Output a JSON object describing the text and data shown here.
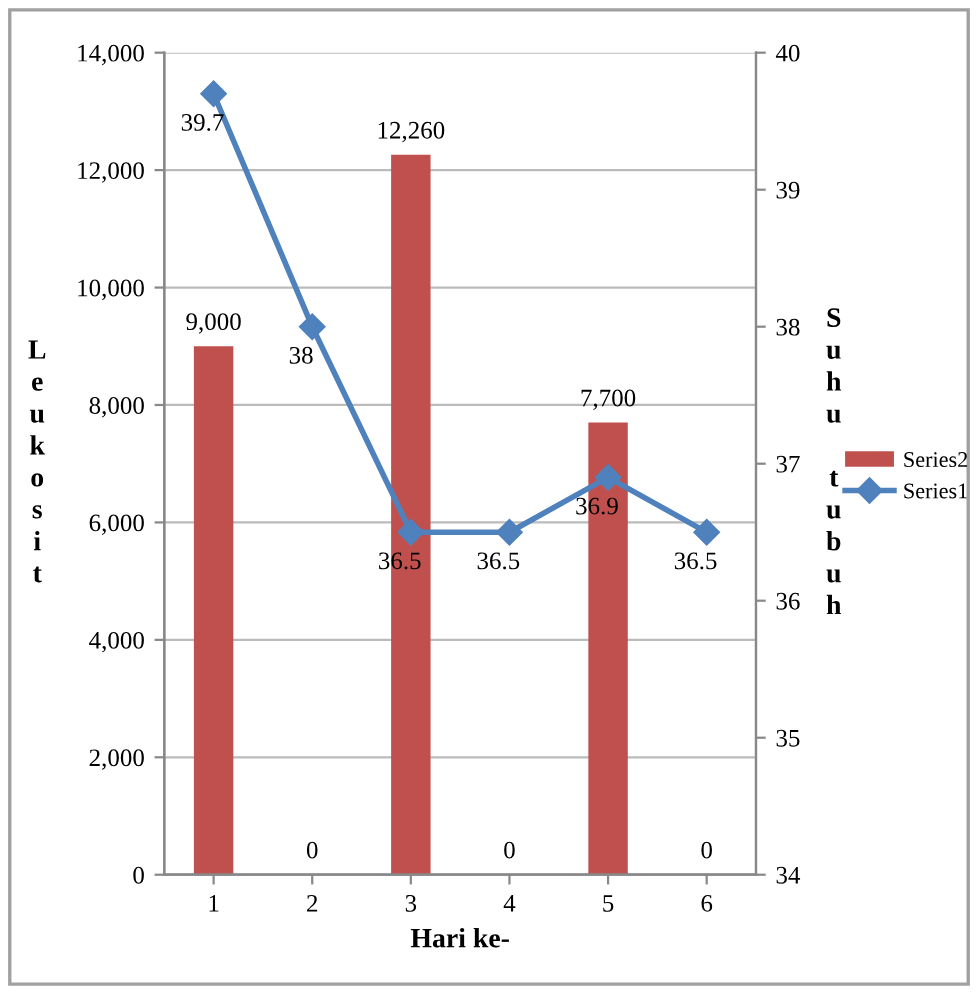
{
  "chart_data": {
    "type": "bar",
    "xlabel": "Hari ke-",
    "ylabel": "Leukosit",
    "y2label": "Suhu tubuh",
    "categories": [
      "1",
      "2",
      "3",
      "4",
      "5",
      "6"
    ],
    "series": [
      {
        "name": "Series2",
        "color": "#c0504d",
        "values": [
          9000,
          0,
          12260,
          0,
          7700,
          0
        ],
        "value_labels": [
          "9,000",
          "0",
          "12,260",
          "0",
          "7,700",
          "0"
        ]
      },
      {
        "name": "Series1",
        "type": "line",
        "axis": "y2",
        "color": "#4f81bd",
        "values": [
          39.7,
          38,
          36.5,
          36.5,
          36.9,
          36.5
        ]
      }
    ],
    "data_labels": true,
    "marker": "diamond",
    "grid": "y",
    "legend": "right",
    "ylim": [
      0,
      14000
    ],
    "yticks": [
      0,
      {
        "value": 2000,
        "label": "2,000"
      },
      {
        "value": 4000,
        "label": "4,000"
      },
      {
        "value": 6000,
        "label": "6,000"
      },
      {
        "value": 8000,
        "label": "8,000"
      },
      {
        "value": 10000,
        "label": "10,000"
      },
      {
        "value": 12000,
        "label": "12,000"
      },
      {
        "value": 14000,
        "label": "14,000"
      }
    ],
    "y2lim": [
      34,
      40
    ],
    "y2ticks": [
      34,
      35,
      36,
      37,
      38,
      39,
      40
    ]
  }
}
